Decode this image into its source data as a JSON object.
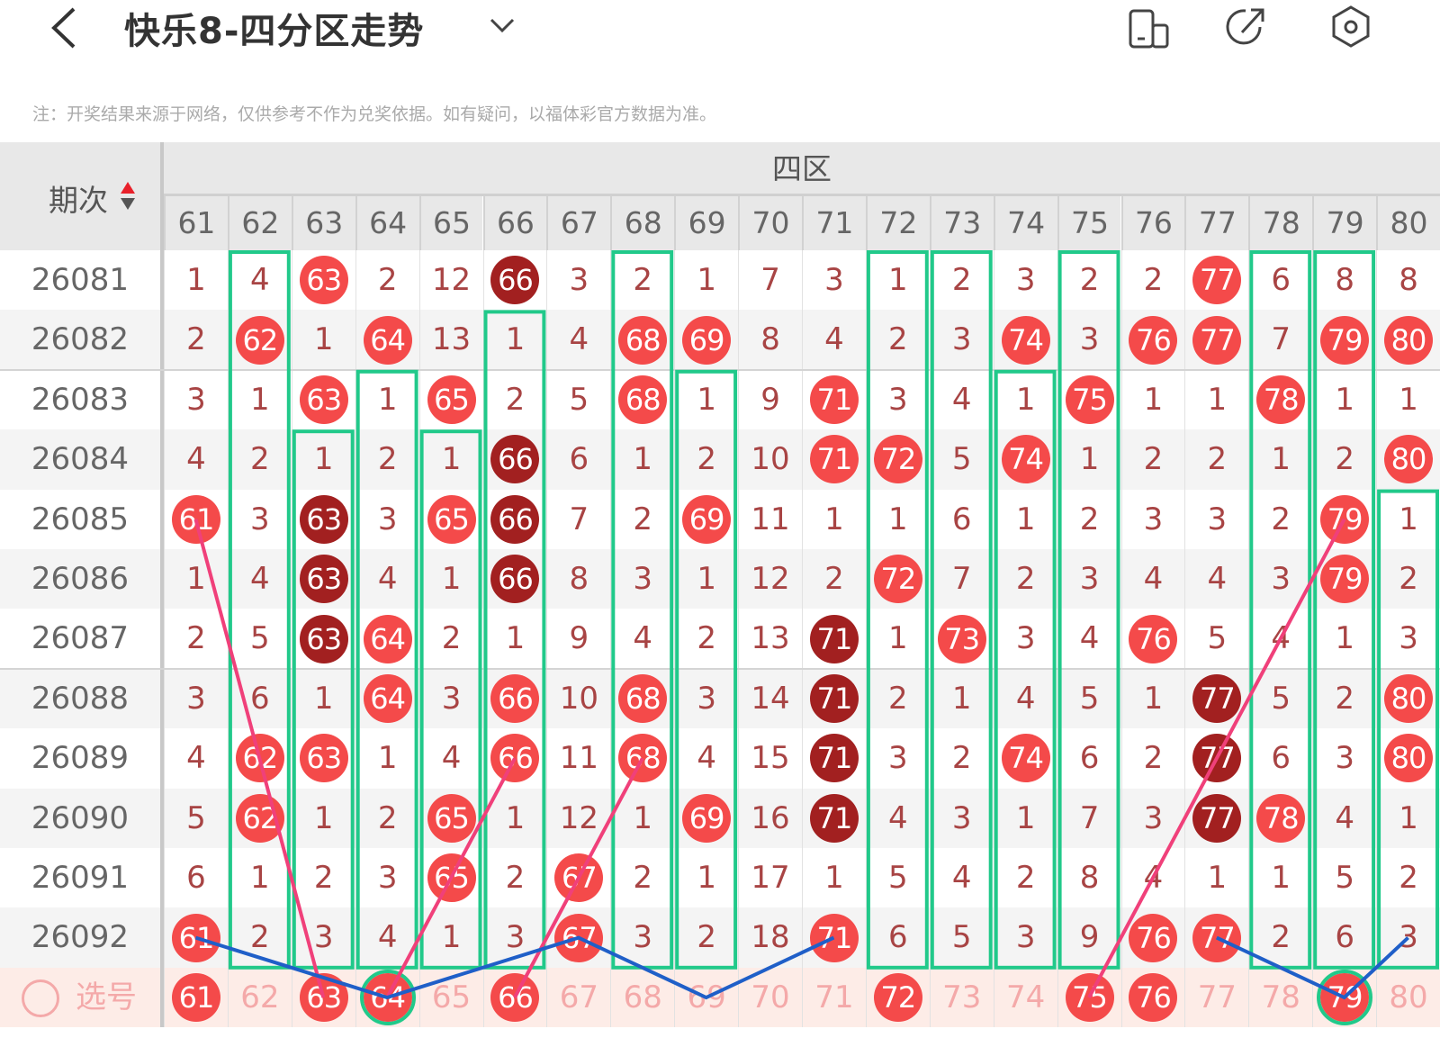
{
  "header": {
    "title": "快乐8-四分区走势",
    "icons": [
      "back-chevron-icon",
      "dropdown-chevron-icon",
      "layout-toggle-icon",
      "share-icon",
      "settings-icon"
    ]
  },
  "note": "注：开奖结果来源于网络，仅供参考不作为兑奖依据。如有疑问，以福体彩官方数据为准。",
  "table": {
    "issue_header": "期次",
    "zone_label": "四区",
    "columns": [
      "61",
      "62",
      "63",
      "64",
      "65",
      "66",
      "67",
      "68",
      "69",
      "70",
      "71",
      "72",
      "73",
      "74",
      "75",
      "76",
      "77",
      "78",
      "79",
      "80"
    ],
    "rows": [
      {
        "issue": "26081",
        "cells": [
          "1",
          "4",
          "63",
          "2",
          "12",
          "66",
          "3",
          "2",
          "1",
          "7",
          "3",
          "1",
          "2",
          "3",
          "2",
          "2",
          "77",
          "6",
          "8",
          "8"
        ],
        "dark": [
          "66"
        ]
      },
      {
        "issue": "26082",
        "cells": [
          "2",
          "62",
          "1",
          "64",
          "13",
          "1",
          "4",
          "68",
          "69",
          "8",
          "4",
          "2",
          "3",
          "74",
          "3",
          "76",
          "77",
          "7",
          "79",
          "80"
        ],
        "dark": []
      },
      {
        "issue": "26083",
        "cells": [
          "3",
          "1",
          "63",
          "1",
          "65",
          "2",
          "5",
          "68",
          "1",
          "9",
          "71",
          "3",
          "4",
          "1",
          "75",
          "1",
          "1",
          "78",
          "1",
          "1"
        ],
        "dark": []
      },
      {
        "issue": "26084",
        "cells": [
          "4",
          "2",
          "1",
          "2",
          "1",
          "66",
          "6",
          "1",
          "2",
          "10",
          "71",
          "72",
          "5",
          "74",
          "1",
          "2",
          "2",
          "1",
          "2",
          "80"
        ],
        "dark": [
          "66"
        ]
      },
      {
        "issue": "26085",
        "cells": [
          "61",
          "3",
          "63",
          "3",
          "65",
          "66",
          "7",
          "2",
          "69",
          "11",
          "1",
          "1",
          "6",
          "1",
          "2",
          "3",
          "3",
          "2",
          "79",
          "1"
        ],
        "dark": [
          "63",
          "66"
        ]
      },
      {
        "issue": "26086",
        "cells": [
          "1",
          "4",
          "63",
          "4",
          "1",
          "66",
          "8",
          "3",
          "1",
          "12",
          "2",
          "72",
          "7",
          "2",
          "3",
          "4",
          "4",
          "3",
          "79",
          "2"
        ],
        "dark": [
          "63",
          "66"
        ]
      },
      {
        "issue": "26087",
        "cells": [
          "2",
          "5",
          "63",
          "64",
          "2",
          "1",
          "9",
          "4",
          "2",
          "13",
          "71",
          "1",
          "73",
          "3",
          "4",
          "76",
          "5",
          "4",
          "1",
          "3"
        ],
        "dark": [
          "63",
          "71"
        ]
      },
      {
        "issue": "26088",
        "cells": [
          "3",
          "6",
          "1",
          "64",
          "3",
          "66",
          "10",
          "68",
          "3",
          "14",
          "71",
          "2",
          "1",
          "4",
          "5",
          "1",
          "77",
          "5",
          "2",
          "80"
        ],
        "dark": [
          "71",
          "77"
        ]
      },
      {
        "issue": "26089",
        "cells": [
          "4",
          "62",
          "63",
          "1",
          "4",
          "66",
          "11",
          "68",
          "4",
          "15",
          "71",
          "3",
          "2",
          "74",
          "6",
          "2",
          "77",
          "6",
          "3",
          "80"
        ],
        "dark": [
          "71",
          "77"
        ]
      },
      {
        "issue": "26090",
        "cells": [
          "5",
          "62",
          "1",
          "2",
          "65",
          "1",
          "12",
          "1",
          "69",
          "16",
          "71",
          "4",
          "3",
          "1",
          "7",
          "3",
          "77",
          "78",
          "4",
          "1"
        ],
        "dark": [
          "71",
          "77"
        ]
      },
      {
        "issue": "26091",
        "cells": [
          "6",
          "1",
          "2",
          "3",
          "65",
          "2",
          "67",
          "2",
          "1",
          "17",
          "1",
          "5",
          "4",
          "2",
          "8",
          "4",
          "1",
          "1",
          "5",
          "2"
        ],
        "dark": []
      },
      {
        "issue": "26092",
        "cells": [
          "61",
          "2",
          "3",
          "4",
          "1",
          "3",
          "67",
          "3",
          "2",
          "18",
          "71",
          "6",
          "5",
          "3",
          "9",
          "76",
          "77",
          "2",
          "6",
          "3"
        ],
        "dark": []
      }
    ],
    "selection": {
      "label": "选号",
      "selected": [
        "61",
        "63",
        "64",
        "66",
        "72",
        "75",
        "76",
        "79"
      ],
      "ringed": [
        "64",
        "69",
        "79"
      ]
    },
    "streak_boxes": [
      {
        "col": "62",
        "from": "26081",
        "to": "26092"
      },
      {
        "col": "63",
        "from": "26084",
        "to": "26092"
      },
      {
        "col": "64",
        "from": "26083",
        "to": "26092"
      },
      {
        "col": "65",
        "from": "26084",
        "to": "26092"
      },
      {
        "col": "66",
        "from": "26082",
        "to": "26092"
      },
      {
        "col": "68",
        "from": "26081",
        "to": "26092"
      },
      {
        "col": "69",
        "from": "26083",
        "to": "26092"
      },
      {
        "col": "72",
        "from": "26081",
        "to": "26092"
      },
      {
        "col": "73",
        "from": "26081",
        "to": "26092"
      },
      {
        "col": "74",
        "from": "26083",
        "to": "26092"
      },
      {
        "col": "75",
        "from": "26081",
        "to": "26092"
      },
      {
        "col": "78",
        "from": "26081",
        "to": "26092"
      },
      {
        "col": "79",
        "from": "26081",
        "to": "26092"
      },
      {
        "col": "80",
        "from": "26085",
        "to": "26092"
      }
    ],
    "pink_lines": [
      [
        [
          "61",
          "26085"
        ],
        [
          "63",
          "sel"
        ]
      ],
      [
        [
          "64",
          "sel"
        ],
        [
          "66",
          "26089"
        ]
      ],
      [
        [
          "66",
          "sel"
        ],
        [
          "68",
          "26089"
        ]
      ],
      [
        [
          "75",
          "sel"
        ],
        [
          "79",
          "26085"
        ]
      ]
    ],
    "blue_lines": [
      [
        [
          "61",
          "26092"
        ],
        [
          "64",
          "sel"
        ],
        [
          "67",
          "26092"
        ],
        [
          "69",
          "sel"
        ],
        [
          "71",
          "26092"
        ]
      ],
      [
        [
          "77",
          "26092"
        ],
        [
          "79",
          "sel"
        ],
        [
          "80",
          "26092"
        ]
      ]
    ]
  },
  "colors": {
    "ball": "#f44a4a",
    "ball_dark": "#a22020",
    "streak_box": "#21c98a",
    "pink_line": "#f0407a",
    "blue_line": "#1f5fc8",
    "miss_text": "#a84444"
  }
}
